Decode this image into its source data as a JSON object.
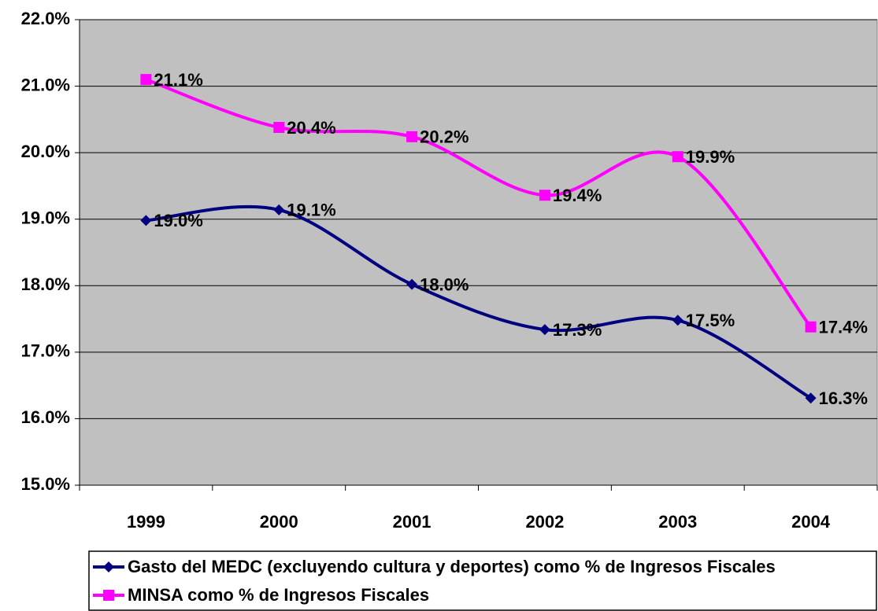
{
  "chart_data": {
    "type": "line",
    "categories": [
      "1999",
      "2000",
      "2001",
      "2002",
      "2003",
      "2004"
    ],
    "series": [
      {
        "name": "Gasto del MEDC (excluyendo cultura y deportes) como % de Ingresos Fiscales",
        "color": "#000080",
        "marker": "diamond",
        "values": [
          18.98,
          19.14,
          18.02,
          17.34,
          17.48,
          16.31
        ],
        "value_labels": [
          "19.0%",
          "19.1%",
          "18.0%",
          "17.3%",
          "17.5%",
          "16.3%"
        ]
      },
      {
        "name": "MINSA como % de Ingresos Fiscales",
        "color": "#ff00ff",
        "marker": "square",
        "values": [
          21.1,
          20.38,
          20.24,
          19.36,
          19.94,
          17.38
        ],
        "value_labels": [
          "21.1%",
          "20.4%",
          "20.2%",
          "19.4%",
          "19.9%",
          "17.4%"
        ]
      }
    ],
    "ylim": [
      15,
      22
    ],
    "yticks": [
      {
        "value": 15,
        "label": "15.0%"
      },
      {
        "value": 16,
        "label": "16.0%"
      },
      {
        "value": 17,
        "label": "17.0%"
      },
      {
        "value": 18,
        "label": "18.0%"
      },
      {
        "value": 19,
        "label": "19.0%"
      },
      {
        "value": 20,
        "label": "20.0%"
      },
      {
        "value": 21,
        "label": "21.0%"
      },
      {
        "value": 22,
        "label": "22.0%"
      }
    ],
    "grid": true,
    "smooth": true,
    "legend": "bottom",
    "plot_background": "#c0c0c0"
  }
}
